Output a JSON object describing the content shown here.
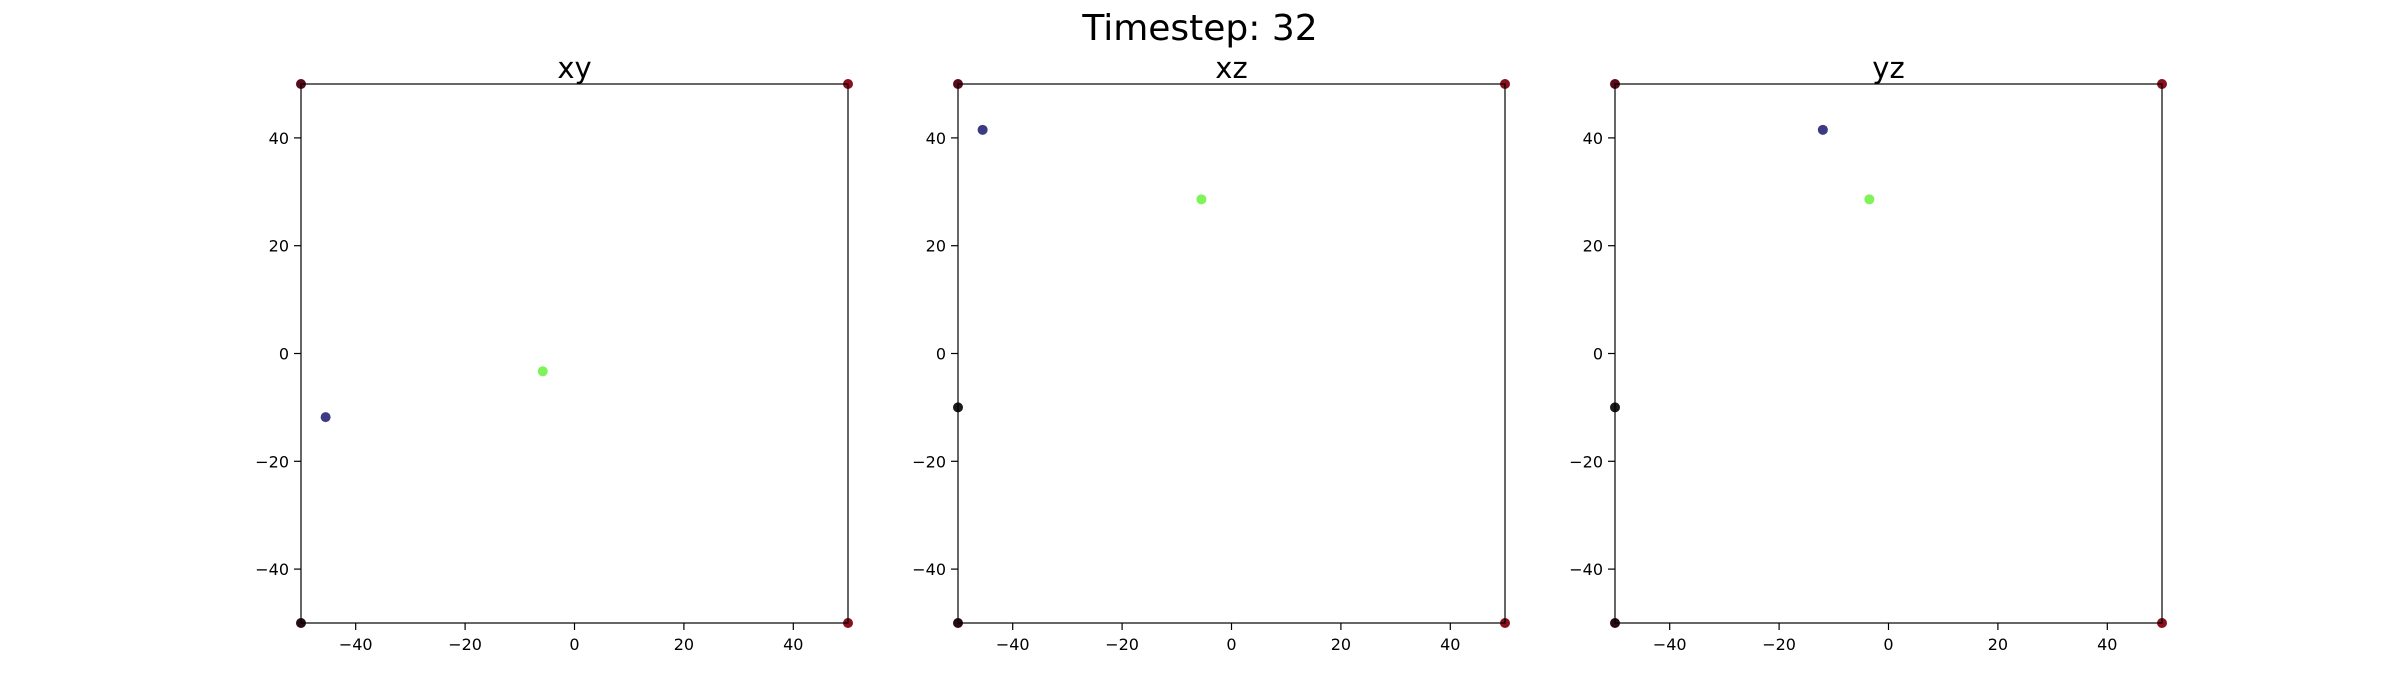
{
  "figure": {
    "suptitle": "Timestep: 32",
    "colors": {
      "axes": "#000000",
      "background": "#ffffff"
    }
  },
  "chart_data": [
    {
      "type": "scatter",
      "title": "xy",
      "xlim": [
        -50,
        50
      ],
      "ylim": [
        -50,
        50
      ],
      "xticks": [
        -40,
        -20,
        0,
        20,
        40
      ],
      "yticks": [
        -40,
        -20,
        0,
        20,
        40
      ],
      "grid": false,
      "points": [
        {
          "x": -45.5,
          "y": -11.8,
          "color": "#3b3a83"
        },
        {
          "x": -5.8,
          "y": -3.3,
          "color": "#7ef35a"
        },
        {
          "x": -50,
          "y": 50,
          "color": "#5a0a1a"
        },
        {
          "x": 50,
          "y": 50,
          "color": "#8a1020"
        },
        {
          "x": -50,
          "y": -50,
          "color": "#2a0a14"
        },
        {
          "x": 50,
          "y": -50,
          "color": "#8a1020"
        }
      ]
    },
    {
      "type": "scatter",
      "title": "xz",
      "xlim": [
        -50,
        50
      ],
      "ylim": [
        -50,
        50
      ],
      "xticks": [
        -40,
        -20,
        0,
        20,
        40
      ],
      "yticks": [
        -40,
        -20,
        0,
        20,
        40
      ],
      "grid": false,
      "points": [
        {
          "x": -45.5,
          "y": 41.5,
          "color": "#3b3a83"
        },
        {
          "x": -5.5,
          "y": 28.6,
          "color": "#7ef35a"
        },
        {
          "x": -50,
          "y": -10,
          "color": "#1a1a1a"
        },
        {
          "x": -50,
          "y": 50,
          "color": "#5a0a1a"
        },
        {
          "x": 50,
          "y": 50,
          "color": "#8a1020"
        },
        {
          "x": -50,
          "y": -50,
          "color": "#2a0a14"
        },
        {
          "x": 50,
          "y": -50,
          "color": "#8a1020"
        }
      ]
    },
    {
      "type": "scatter",
      "title": "yz",
      "xlim": [
        -50,
        50
      ],
      "ylim": [
        -50,
        50
      ],
      "xticks": [
        -40,
        -20,
        0,
        20,
        40
      ],
      "yticks": [
        -40,
        -20,
        0,
        20,
        40
      ],
      "grid": false,
      "points": [
        {
          "x": -12,
          "y": 41.5,
          "color": "#3b3a83"
        },
        {
          "x": -3.5,
          "y": 28.6,
          "color": "#7ef35a"
        },
        {
          "x": -50,
          "y": -10,
          "color": "#1a1a1a"
        },
        {
          "x": -50,
          "y": 50,
          "color": "#5a0a1a"
        },
        {
          "x": 50,
          "y": 50,
          "color": "#8a1020"
        },
        {
          "x": -50,
          "y": -50,
          "color": "#2a0a14"
        },
        {
          "x": 50,
          "y": -50,
          "color": "#8a1020"
        }
      ]
    }
  ]
}
